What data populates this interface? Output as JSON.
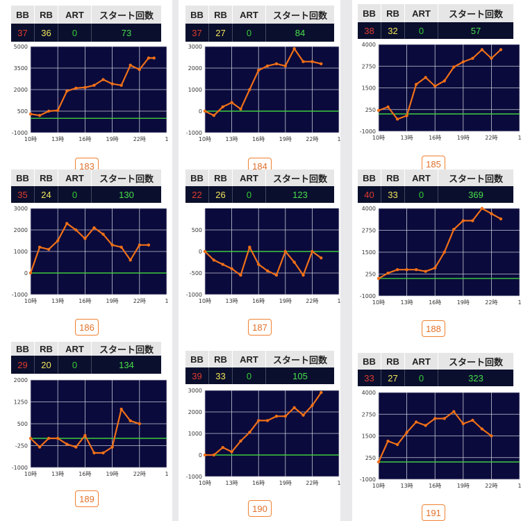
{
  "headers": {
    "bb": "BB",
    "rb": "RB",
    "art": "ART",
    "start": "スタート回数"
  },
  "colors": {
    "plot_bg": "#0a0a3c",
    "line": "#f07018",
    "zero_line": "#3ecc3e",
    "bb": "#e03b2f",
    "rb": "#f2e55a",
    "start": "#46e04a",
    "button_border": "#f08030"
  },
  "machines": [
    {
      "number": "183",
      "stats": {
        "bb": "37",
        "rb": "36",
        "art": "0",
        "start": "73"
      }
    },
    {
      "number": "184",
      "stats": {
        "bb": "37",
        "rb": "27",
        "art": "0",
        "start": "84"
      }
    },
    {
      "number": "185",
      "stats": {
        "bb": "38",
        "rb": "32",
        "art": "0",
        "start": "57"
      }
    },
    {
      "number": "186",
      "stats": {
        "bb": "35",
        "rb": "24",
        "art": "0",
        "start": "130"
      }
    },
    {
      "number": "187",
      "stats": {
        "bb": "22",
        "rb": "26",
        "art": "0",
        "start": "123"
      }
    },
    {
      "number": "188",
      "stats": {
        "bb": "40",
        "rb": "33",
        "art": "0",
        "start": "369"
      }
    },
    {
      "number": "189",
      "stats": {
        "bb": "29",
        "rb": "20",
        "art": "0",
        "start": "134"
      }
    },
    {
      "number": "190",
      "stats": {
        "bb": "39",
        "rb": "33",
        "art": "0",
        "start": "105"
      }
    },
    {
      "number": "191",
      "stats": {
        "bb": "33",
        "rb": "27",
        "art": "0",
        "start": "323"
      }
    }
  ],
  "chart_data": [
    {
      "type": "line",
      "machine": "183",
      "x_ticks": [
        "10時",
        "13時",
        "16時",
        "19時",
        "22時",
        "1"
      ],
      "y_ticks": [
        5000,
        3500,
        2000,
        500,
        -1000
      ],
      "ylim": [
        -1000,
        5000
      ],
      "x": [
        10,
        11,
        12,
        13,
        14,
        15,
        16,
        17,
        18,
        19,
        20,
        21,
        22,
        23,
        23.6
      ],
      "values": [
        300,
        200,
        500,
        550,
        1900,
        2100,
        2150,
        2300,
        2700,
        2400,
        2300,
        3700,
        3400,
        4200,
        4200
      ],
      "zero_line": 0
    },
    {
      "type": "line",
      "machine": "184",
      "x_ticks": [
        "10時",
        "13時",
        "16時",
        "19時",
        "22時",
        "1"
      ],
      "y_ticks": [
        3000,
        2000,
        1000,
        0,
        -1000
      ],
      "ylim": [
        -1000,
        3000
      ],
      "x": [
        10,
        11,
        12,
        13,
        14,
        15,
        16,
        17,
        18,
        19,
        20,
        21,
        22,
        23
      ],
      "values": [
        0,
        -200,
        200,
        400,
        100,
        1000,
        1900,
        2100,
        2200,
        2100,
        2900,
        2300,
        2300,
        2200
      ],
      "zero_line": 0
    },
    {
      "type": "line",
      "machine": "185",
      "x_ticks": [
        "10時",
        "13時",
        "16時",
        "19時",
        "22時",
        "1"
      ],
      "y_ticks": [
        4000,
        2750,
        1500,
        250,
        -1000
      ],
      "ylim": [
        -1000,
        4000
      ],
      "x": [
        10,
        11,
        12,
        13,
        14,
        15,
        16,
        17,
        18,
        19,
        20,
        21,
        22,
        23
      ],
      "values": [
        200,
        400,
        -300,
        -100,
        1700,
        2100,
        1600,
        1900,
        2700,
        3000,
        3200,
        3700,
        3200,
        3700
      ],
      "zero_line": 0
    },
    {
      "type": "line",
      "machine": "186",
      "x_ticks": [
        "10時",
        "13時",
        "16時",
        "19時",
        "22時",
        "1"
      ],
      "y_ticks": [
        3000,
        2000,
        1000,
        0,
        -1000
      ],
      "ylim": [
        -1000,
        3000
      ],
      "x": [
        10,
        11,
        12,
        13,
        14,
        15,
        16,
        17,
        18,
        19,
        20,
        21,
        22,
        23
      ],
      "values": [
        0,
        1200,
        1100,
        1500,
        2300,
        2000,
        1600,
        2100,
        1800,
        1300,
        1200,
        600,
        1300,
        1300
      ],
      "zero_line": 0
    },
    {
      "type": "line",
      "machine": "187",
      "x_ticks": [
        "10時",
        "13時",
        "16時",
        "19時",
        "22時",
        "1"
      ],
      "y_ticks": [
        500,
        0,
        -500,
        -1000
      ],
      "ylim": [
        -1000,
        1000
      ],
      "x": [
        10,
        11,
        12,
        13,
        14,
        15,
        16,
        17,
        18,
        19,
        20,
        21,
        22,
        23
      ],
      "values": [
        0,
        -200,
        -300,
        -400,
        -550,
        100,
        -300,
        -450,
        -550,
        0,
        -250,
        -550,
        0,
        -150
      ],
      "zero_line": 0
    },
    {
      "type": "line",
      "machine": "188",
      "x_ticks": [
        "10時",
        "13時",
        "16時",
        "19時",
        "22時",
        "1"
      ],
      "y_ticks": [
        4000,
        2750,
        1500,
        250,
        -1000
      ],
      "ylim": [
        -1000,
        4000
      ],
      "x": [
        10,
        11,
        12,
        13,
        14,
        15,
        16,
        17,
        18,
        19,
        20,
        21,
        22,
        23
      ],
      "values": [
        0,
        300,
        500,
        500,
        500,
        400,
        600,
        1500,
        2800,
        3300,
        3300,
        4000,
        3700,
        3400
      ],
      "zero_line": 0
    },
    {
      "type": "line",
      "machine": "189",
      "x_ticks": [
        "10時",
        "13時",
        "16時",
        "19時",
        "22時",
        "1"
      ],
      "y_ticks": [
        2000,
        1250,
        500,
        -250,
        -1000
      ],
      "ylim": [
        -1000,
        2000
      ],
      "x": [
        10,
        11,
        12,
        13,
        14,
        15,
        16,
        17,
        18,
        19,
        20,
        21,
        22
      ],
      "values": [
        0,
        -300,
        0,
        0,
        -200,
        -300,
        100,
        -500,
        -500,
        -300,
        1000,
        600,
        500
      ],
      "zero_line": 0
    },
    {
      "type": "line",
      "machine": "190",
      "x_ticks": [
        "10時",
        "13時",
        "16時",
        "19時",
        "22時",
        "1"
      ],
      "y_ticks": [
        3000,
        2000,
        1000,
        0,
        -1000
      ],
      "ylim": [
        -1000,
        3000
      ],
      "x": [
        10,
        11,
        12,
        13,
        14,
        15,
        16,
        17,
        18,
        19,
        20,
        21,
        22,
        23
      ],
      "values": [
        0,
        0,
        350,
        150,
        650,
        1050,
        1600,
        1600,
        1800,
        1800,
        2200,
        1850,
        2300,
        2900
      ],
      "zero_line": 0
    },
    {
      "type": "line",
      "machine": "191",
      "x_ticks": [
        "10時",
        "13時",
        "16時",
        "19時",
        "22時",
        "1"
      ],
      "y_ticks": [
        4000,
        2750,
        1500,
        250,
        -1000
      ],
      "ylim": [
        -1000,
        4000
      ],
      "x": [
        10,
        11,
        12,
        13,
        14,
        15,
        16,
        17,
        18,
        19,
        20,
        21,
        22
      ],
      "values": [
        0,
        1200,
        1000,
        1700,
        2300,
        2100,
        2500,
        2500,
        2900,
        2200,
        2400,
        1900,
        1500
      ],
      "zero_line": 0
    }
  ]
}
